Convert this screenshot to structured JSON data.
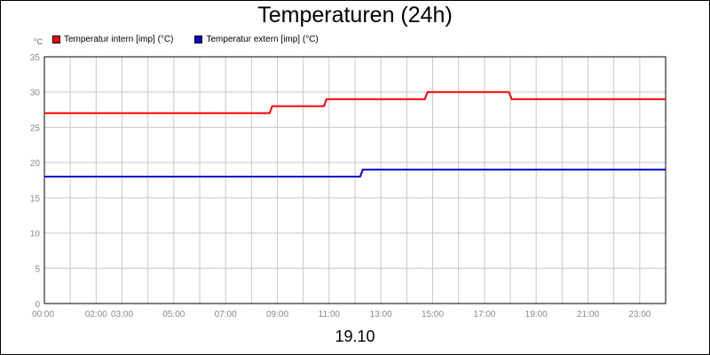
{
  "chart_data": {
    "type": "line",
    "title": "Temperaturen (24h)",
    "y_unit": "°C",
    "xlabel": "19.10",
    "ylim": [
      0,
      35
    ],
    "yticks": [
      0,
      5,
      10,
      15,
      20,
      25,
      30,
      35
    ],
    "xlim": [
      0,
      24
    ],
    "xtick_labels": [
      {
        "at": 0,
        "label": "00:00"
      },
      {
        "at": 2,
        "label": "02:00"
      },
      {
        "at": 3,
        "label": "03:00"
      },
      {
        "at": 5,
        "label": "05:00"
      },
      {
        "at": 7,
        "label": "07:00"
      },
      {
        "at": 9,
        "label": "09:00"
      },
      {
        "at": 11,
        "label": "11:00"
      },
      {
        "at": 13,
        "label": "13:00"
      },
      {
        "at": 15,
        "label": "15:00"
      },
      {
        "at": 17,
        "label": "17:00"
      },
      {
        "at": 19,
        "label": "19:00"
      },
      {
        "at": 21,
        "label": "21:00"
      },
      {
        "at": 23,
        "label": "23:00"
      }
    ],
    "grid": true,
    "legend_position": "top-left",
    "series": [
      {
        "name": "Temperatur intern [imp] (°C)",
        "color": "#ff0000",
        "points": [
          [
            0,
            27
          ],
          [
            8.7,
            27
          ],
          [
            8.8,
            28
          ],
          [
            10.8,
            28
          ],
          [
            10.9,
            29
          ],
          [
            14.7,
            29
          ],
          [
            14.8,
            30
          ],
          [
            17.95,
            30
          ],
          [
            18.05,
            29
          ],
          [
            24,
            29
          ]
        ]
      },
      {
        "name": "Temperatur extern [imp] (°C)",
        "color": "#0000cc",
        "points": [
          [
            0,
            18
          ],
          [
            12.2,
            18
          ],
          [
            12.3,
            19
          ],
          [
            24,
            19
          ]
        ]
      }
    ]
  }
}
